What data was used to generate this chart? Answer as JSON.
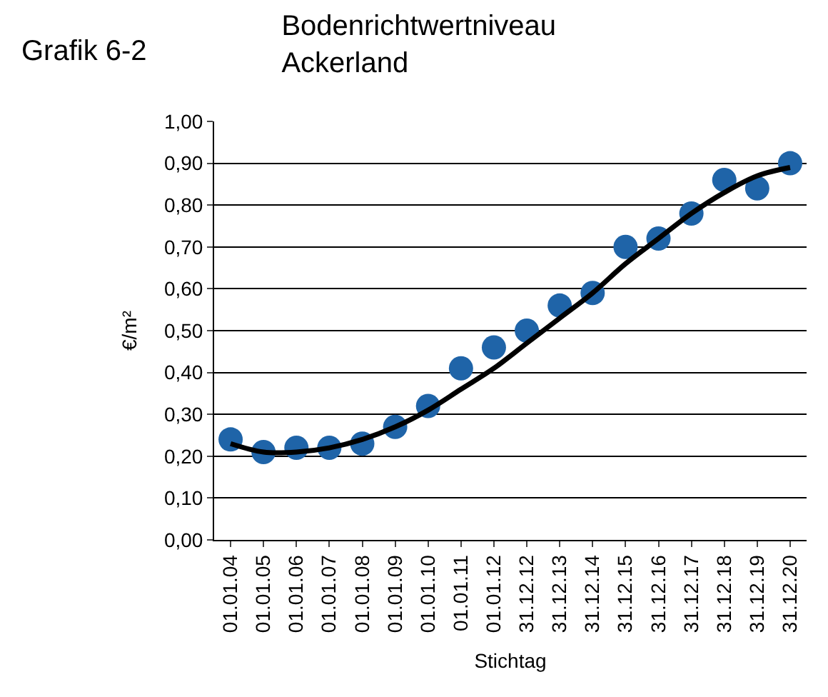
{
  "chart_data": {
    "type": "scatter",
    "title": "Bodenrichtwertniveau\nAckerland",
    "annotations": [
      "Grafik 6-2"
    ],
    "xlabel": "Stichtag",
    "ylabel": "€/m²",
    "categories": [
      "01.01.04",
      "01.01.05",
      "01.01.06",
      "01.01.07",
      "01.01.08",
      "01.01.09",
      "01.01.10",
      "01.01.11",
      "01.01.12",
      "31.12.12",
      "31.12.13",
      "31.12.14",
      "31.12.15",
      "31.12.16",
      "31.12.17",
      "31.12.18",
      "31.12.19",
      "31.12.20"
    ],
    "series": [
      {
        "color": "#1f64a8",
        "marker": "circle",
        "values": [
          0.24,
          0.21,
          0.22,
          0.22,
          0.23,
          0.27,
          0.32,
          0.41,
          0.46,
          0.5,
          0.56,
          0.59,
          0.7,
          0.72,
          0.78,
          0.86,
          0.84,
          0.9
        ]
      },
      {
        "type": "line",
        "color": "#000000",
        "marker": "none",
        "values": [
          0.23,
          0.21,
          0.21,
          0.22,
          0.24,
          0.27,
          0.31,
          0.36,
          0.41,
          0.47,
          0.53,
          0.59,
          0.66,
          0.72,
          0.78,
          0.83,
          0.87,
          0.89
        ]
      }
    ],
    "ylim": [
      0,
      1
    ],
    "yticks": [
      {
        "value": 0,
        "label": "0,00"
      },
      {
        "value": 0.1,
        "label": "0,10"
      },
      {
        "value": 0.2,
        "label": "0,20"
      },
      {
        "value": 0.3,
        "label": "0,30"
      },
      {
        "value": 0.4,
        "label": "0,40"
      },
      {
        "value": 0.5,
        "label": "0,50"
      },
      {
        "value": 0.6,
        "label": "0,60"
      },
      {
        "value": 0.7,
        "label": "0,70"
      },
      {
        "value": 0.8,
        "label": "0,80"
      },
      {
        "value": 0.9,
        "label": "0,90"
      },
      {
        "value": 1,
        "label": "1,00"
      }
    ],
    "grid": "y"
  }
}
